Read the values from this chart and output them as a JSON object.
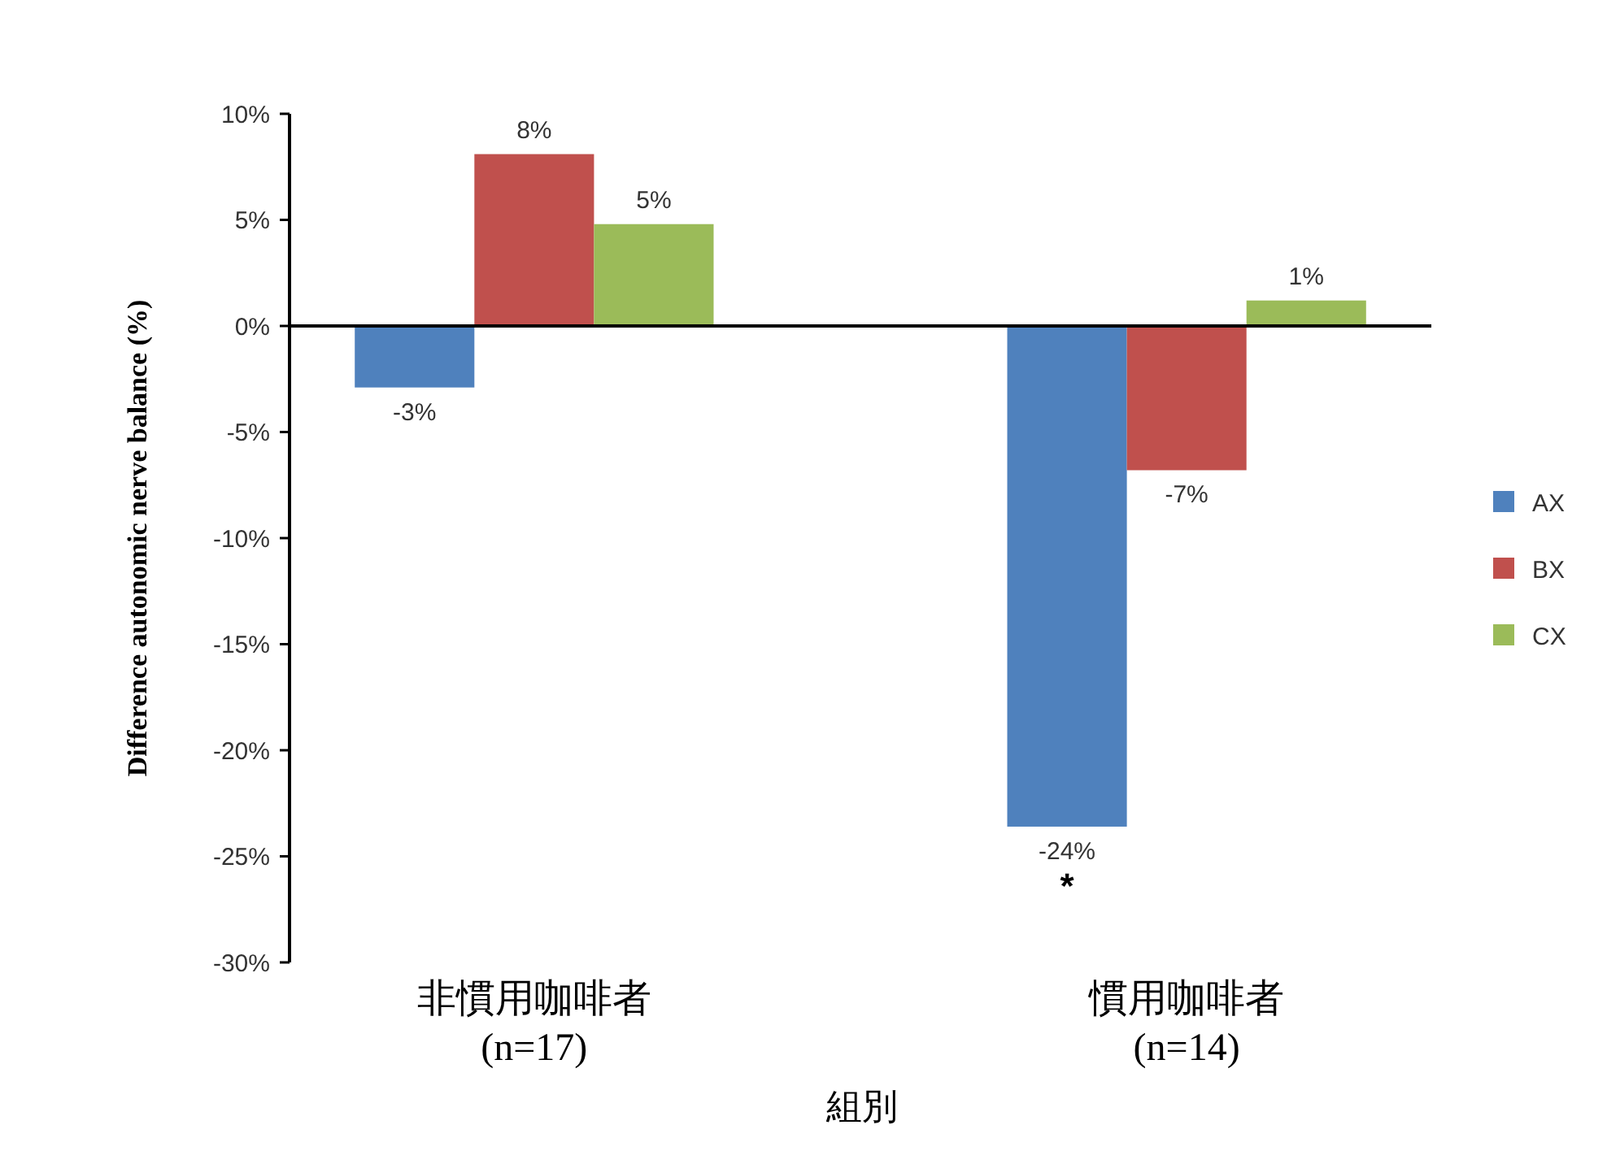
{
  "chart_data": {
    "type": "bar",
    "xlabel": "組別",
    "ylabel": "Difference autonomic nerve balance (%)",
    "categories": [
      "非慣用咖啡者\n(n=17)",
      "慣用咖啡者\n(n=14)"
    ],
    "series": [
      {
        "name": "AX",
        "color": "#4f81bd",
        "values": [
          -2.9,
          -23.6
        ],
        "value_labels": [
          "-3%",
          "-24%"
        ]
      },
      {
        "name": "BX",
        "color": "#c0504d",
        "values": [
          8.1,
          -6.8
        ],
        "value_labels": [
          "8%",
          "-7%"
        ]
      },
      {
        "name": "CX",
        "color": "#9bbb59",
        "values": [
          4.8,
          1.2
        ],
        "value_labels": [
          "5%",
          "1%"
        ]
      }
    ],
    "ylim": [
      -30,
      10
    ],
    "yticks": [
      {
        "value": 10,
        "label": "10%"
      },
      {
        "value": 5,
        "label": "5%"
      },
      {
        "value": 0,
        "label": "0%"
      },
      {
        "value": -5,
        "label": "-5%"
      },
      {
        "value": -10,
        "label": "-10%"
      },
      {
        "value": -15,
        "label": "-15%"
      },
      {
        "value": -20,
        "label": "-20%"
      },
      {
        "value": -25,
        "label": "-25%"
      },
      {
        "value": -30,
        "label": "-30%"
      }
    ],
    "annotations": [
      "*"
    ],
    "ref_lines": [
      {
        "axis": "y",
        "value": 0,
        "color": "#000000"
      }
    ],
    "legend": "right",
    "grid": false
  }
}
